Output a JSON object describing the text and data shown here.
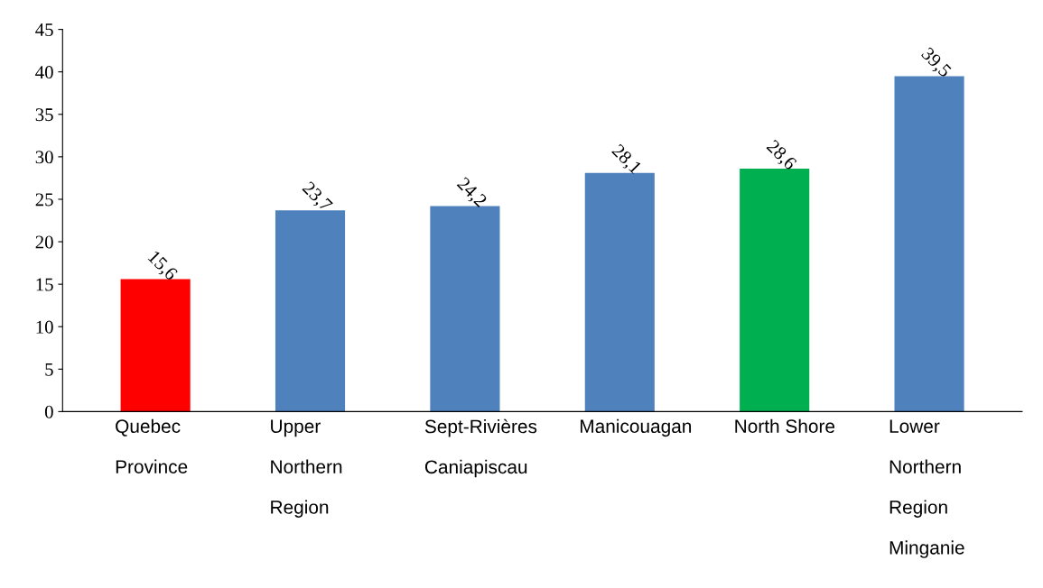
{
  "chart_data": {
    "type": "bar",
    "categories": [
      "Quebec\n\nProvince",
      "Upper\n\nNorthern\n\nRegion",
      "Sept-Rivières\n\nCaniapiscau",
      "Manicouagan",
      "North Shore",
      "Lower\n\nNorthern\n\nRegion\n\nMinganie"
    ],
    "values": [
      15.6,
      23.7,
      24.2,
      28.1,
      28.6,
      39.5
    ],
    "colors": [
      "#ff0000",
      "#4f81bd",
      "#4f81bd",
      "#4f81bd",
      "#00b050",
      "#4f81bd"
    ],
    "value_labels": [
      "15,6",
      "23,7",
      "24,2",
      "28,1",
      "28,6",
      "39,5"
    ],
    "ylim": [
      0,
      45
    ],
    "yticks": [
      0,
      5,
      10,
      15,
      20,
      25,
      30,
      35,
      40,
      45
    ],
    "grid": false,
    "legend": false
  }
}
